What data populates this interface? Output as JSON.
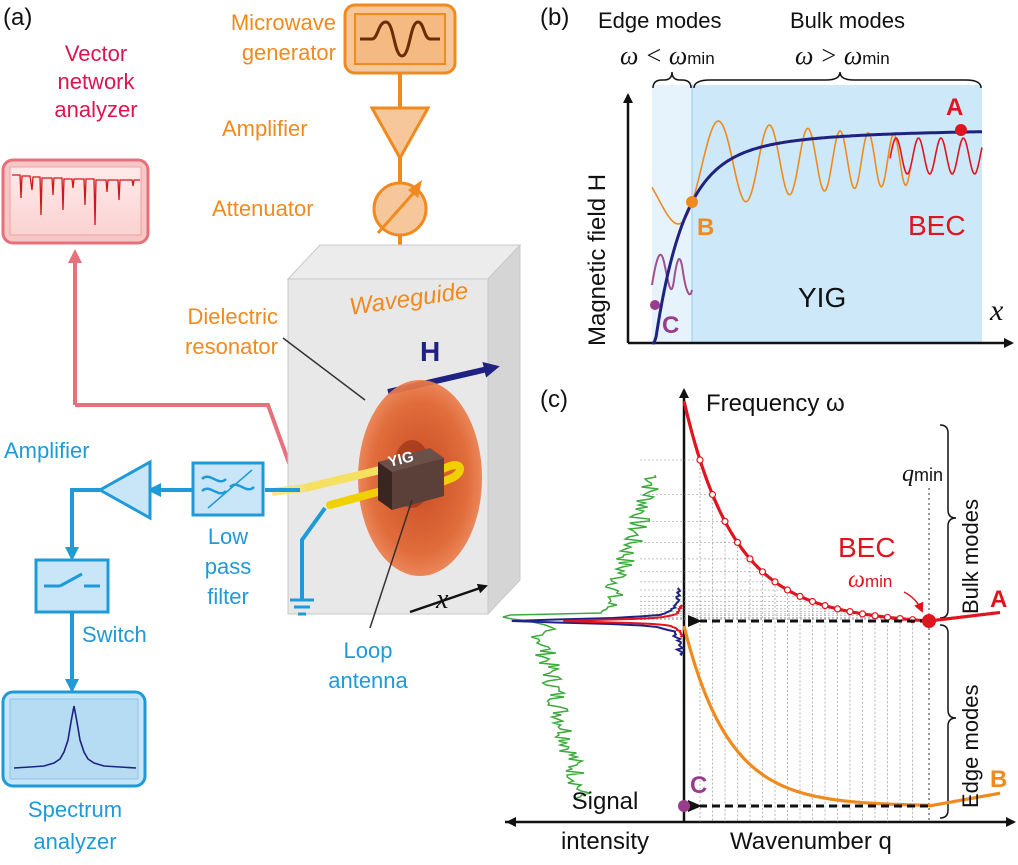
{
  "colors": {
    "orange": "#f08a1e",
    "pink": "#e8707a",
    "crimson": "#dc1450",
    "blue": "#1f9ad8",
    "navy": "#1f2280",
    "red": "#e0141e",
    "purple": "#9a3c8c",
    "green": "#3caa3c",
    "yig_bg": "#cde8f8"
  },
  "panel_a": {
    "label": "(a)",
    "vna_label": [
      "Vector",
      "network",
      "analyzer"
    ],
    "mw_label": [
      "Microwave",
      "generator"
    ],
    "amplifier_top": "Amplifier",
    "attenuator": "Attenuator",
    "dielectric": [
      "Dielectric",
      "resonator"
    ],
    "waveguide": "Waveguide",
    "h_label": "H",
    "yig_chip": "YIG",
    "x_label": "x",
    "amplifier_left": "Amplifier",
    "lpf_label": [
      "Low",
      "pass",
      "filter"
    ],
    "switch": "Switch",
    "spectrum_label": [
      "Spectrum",
      "analyzer"
    ],
    "loop_label": [
      "Loop",
      "antenna"
    ]
  },
  "panel_b": {
    "label": "(b)",
    "edge_modes": "Edge modes",
    "edge_cond": "ω < ω",
    "edge_sub": "min",
    "bulk_modes": "Bulk modes",
    "bulk_cond": "ω > ω",
    "bulk_sub": "min",
    "ylabel": "Magnetic field H",
    "xlabel": "x",
    "point_a": "A",
    "point_b": "B",
    "point_c": "C",
    "bec": "BEC",
    "yig": "YIG"
  },
  "panel_c": {
    "label": "(c)",
    "ylabel": "Frequency ω",
    "qmin": "q",
    "qmin_sub": "min",
    "bec": "BEC",
    "omega_min": "ω",
    "omega_sub": "min",
    "bulk_modes": "Bulk modes",
    "edge_modes": "Edge modes",
    "point_a": "A",
    "point_b": "B",
    "point_c": "C",
    "signal": "Signal",
    "intensity": "intensity",
    "xlabel": "Wavenumber q"
  }
}
